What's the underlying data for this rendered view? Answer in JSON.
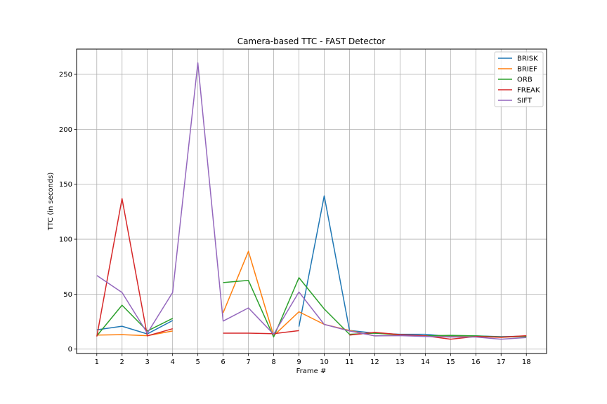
{
  "chart_data": {
    "type": "line",
    "title": "Camera-based TTC - FAST Detector",
    "xlabel": "Frame #",
    "ylabel": "TTC (in seconds)",
    "x": [
      1,
      2,
      3,
      4,
      5,
      6,
      7,
      8,
      9,
      10,
      11,
      12,
      13,
      14,
      15,
      16,
      17,
      18
    ],
    "xlim": [
      0.2,
      18.8
    ],
    "ylim": [
      -4,
      273
    ],
    "yticks": [
      0,
      50,
      100,
      150,
      200,
      250
    ],
    "grid": true,
    "legend_position": "top-right",
    "series": [
      {
        "name": "BRISK",
        "color": "#1f77b4",
        "values": [
          17.5,
          20.8,
          13.8,
          26,
          null,
          null,
          null,
          null,
          20.5,
          139.5,
          17,
          14.5,
          13.5,
          13.5,
          11.5,
          12,
          11.3,
          11.8
        ]
      },
      {
        "name": "BRIEF",
        "color": "#ff7f0e",
        "values": [
          12.7,
          13.2,
          12.2,
          16.5,
          null,
          33,
          89,
          12.2,
          34,
          22.5,
          17,
          12,
          12.5,
          12,
          12.3,
          11.7,
          10.7,
          11.8
        ]
      },
      {
        "name": "ORB",
        "color": "#2ca02c",
        "values": [
          12,
          40,
          16.5,
          28,
          null,
          60.5,
          62.5,
          11,
          65,
          36.5,
          13.5,
          14.5,
          13,
          12,
          12.5,
          12,
          11,
          11.5
        ]
      },
      {
        "name": "FREAK",
        "color": "#d62728",
        "values": [
          11.5,
          137,
          12,
          18.5,
          null,
          14.5,
          14.5,
          14,
          16.8,
          null,
          12.8,
          15.2,
          13.2,
          12,
          9,
          11.5,
          10.8,
          12.2
        ]
      },
      {
        "name": "SIFT",
        "color": "#9467bd",
        "values": [
          67,
          51.5,
          14.5,
          51.5,
          260.5,
          25.5,
          37.5,
          13.5,
          52,
          22.5,
          16.5,
          12,
          12.3,
          11.5,
          11,
          11,
          9,
          10.5
        ]
      }
    ]
  }
}
